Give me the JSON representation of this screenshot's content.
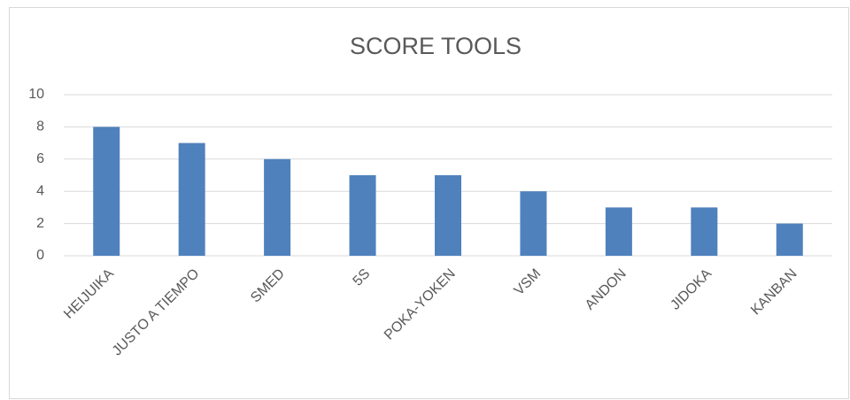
{
  "chart_data": {
    "type": "bar",
    "title": "SCORE TOOLS",
    "categories": [
      "HEIJUIKA",
      "JUSTO A TIEMPO",
      "SMED",
      "5S",
      "POKA-YOKEN",
      "VSM",
      "ANDON",
      "JIDOKA",
      "KANBAN"
    ],
    "values": [
      8,
      7,
      6,
      5,
      5,
      4,
      3,
      3,
      2
    ],
    "color": "#4f81bd",
    "ylim": [
      0,
      10
    ],
    "yticks": [
      0,
      2,
      4,
      6,
      8,
      10
    ],
    "grid": true
  }
}
